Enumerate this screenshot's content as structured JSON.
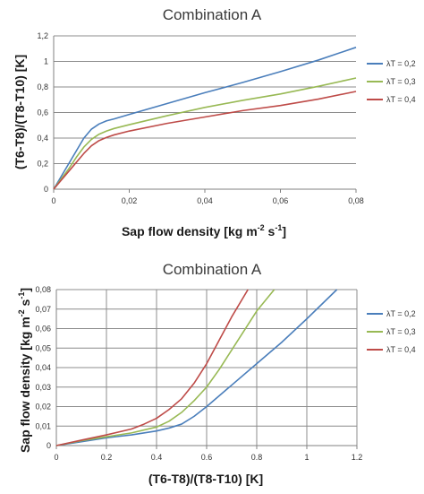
{
  "chart_data": [
    {
      "type": "line",
      "title": "Combination A",
      "xlabel": "Sap flow density [kg m-2 s-1]",
      "ylabel": "(T6-T8)/(T8-T10) [K]",
      "xlim": [
        0,
        0.08
      ],
      "ylim": [
        0,
        1.2
      ],
      "xticks": [
        0,
        0.02,
        0.04,
        0.06,
        0.08
      ],
      "xtick_labels": [
        "0",
        "0,02",
        "0,04",
        "0,06",
        "0,08"
      ],
      "yticks": [
        0,
        0.2,
        0.4,
        0.6,
        0.8,
        1,
        1.2
      ],
      "ytick_labels": [
        "0",
        "0,2",
        "0,4",
        "0,6",
        "0,8",
        "1",
        "1,2"
      ],
      "grid": "horizontal",
      "legend_position": "right",
      "series": [
        {
          "name": "λT = 0,2",
          "color": "#4a7ebb",
          "x": [
            0,
            0.002,
            0.004,
            0.006,
            0.008,
            0.01,
            0.012,
            0.014,
            0.016,
            0.02,
            0.03,
            0.04,
            0.05,
            0.06,
            0.07,
            0.08
          ],
          "y": [
            0,
            0.1,
            0.2,
            0.3,
            0.4,
            0.47,
            0.51,
            0.535,
            0.55,
            0.585,
            0.67,
            0.755,
            0.835,
            0.92,
            1.01,
            1.11
          ]
        },
        {
          "name": "λT = 0,3",
          "color": "#98b954",
          "x": [
            0,
            0.002,
            0.004,
            0.006,
            0.008,
            0.01,
            0.012,
            0.014,
            0.016,
            0.02,
            0.03,
            0.04,
            0.05,
            0.06,
            0.07,
            0.08
          ],
          "y": [
            0,
            0.08,
            0.16,
            0.25,
            0.33,
            0.39,
            0.43,
            0.455,
            0.475,
            0.505,
            0.575,
            0.64,
            0.695,
            0.745,
            0.805,
            0.87
          ]
        },
        {
          "name": "λT = 0,4",
          "color": "#be4b48",
          "x": [
            0,
            0.002,
            0.004,
            0.006,
            0.008,
            0.01,
            0.012,
            0.014,
            0.016,
            0.02,
            0.03,
            0.04,
            0.05,
            0.06,
            0.07,
            0.08
          ],
          "y": [
            0,
            0.07,
            0.14,
            0.21,
            0.28,
            0.34,
            0.38,
            0.405,
            0.425,
            0.455,
            0.515,
            0.565,
            0.615,
            0.655,
            0.705,
            0.765
          ]
        }
      ]
    },
    {
      "type": "line",
      "title": "Combination A",
      "xlabel": "(T6-T8)/(T8-T10) [K]",
      "ylabel": "Sap flow density [kg m-2 s-1]",
      "xlim": [
        0,
        1.2
      ],
      "ylim": [
        0,
        0.08
      ],
      "xticks": [
        0,
        0.2,
        0.4,
        0.6,
        0.8,
        1,
        1.2
      ],
      "xtick_labels": [
        "0",
        "0.2",
        "0.4",
        "0.6",
        "0.8",
        "1",
        "1.2"
      ],
      "yticks": [
        0,
        0.01,
        0.02,
        0.03,
        0.04,
        0.05,
        0.06,
        0.07,
        0.08
      ],
      "ytick_labels": [
        "0",
        "0,01",
        "0,02",
        "0,03",
        "0,04",
        "0,05",
        "0,06",
        "0,07",
        "0,08"
      ],
      "grid": "both",
      "legend_position": "right",
      "series": [
        {
          "name": "λT = 0,2",
          "color": "#4a7ebb",
          "x": [
            0,
            0.1,
            0.2,
            0.3,
            0.4,
            0.45,
            0.5,
            0.55,
            0.6,
            0.7,
            0.8,
            0.9,
            1.0,
            1.12
          ],
          "y": [
            0,
            0.002,
            0.004,
            0.0055,
            0.0075,
            0.009,
            0.011,
            0.015,
            0.02,
            0.031,
            0.042,
            0.053,
            0.065,
            0.08
          ]
        },
        {
          "name": "λT = 0,3",
          "color": "#98b954",
          "x": [
            0,
            0.1,
            0.2,
            0.3,
            0.4,
            0.45,
            0.5,
            0.55,
            0.6,
            0.65,
            0.7,
            0.75,
            0.8,
            0.87
          ],
          "y": [
            0,
            0.0025,
            0.0045,
            0.0065,
            0.0095,
            0.0125,
            0.017,
            0.023,
            0.03,
            0.039,
            0.049,
            0.059,
            0.069,
            0.08
          ]
        },
        {
          "name": "λT = 0,4",
          "color": "#be4b48",
          "x": [
            0,
            0.1,
            0.2,
            0.3,
            0.35,
            0.4,
            0.45,
            0.5,
            0.55,
            0.6,
            0.65,
            0.7,
            0.765
          ],
          "y": [
            0,
            0.0028,
            0.0055,
            0.0085,
            0.011,
            0.014,
            0.0185,
            0.024,
            0.032,
            0.042,
            0.054,
            0.066,
            0.08
          ]
        }
      ]
    }
  ],
  "ylabel_parts_1": {
    "pre": "(T6-T8)/(T8-T10) [K]"
  },
  "xlabel_parts_1": {
    "a": "Sap flow density [kg m",
    "b": "-2",
    "c": " s",
    "d": "-1",
    "e": "]"
  },
  "ylabel_parts_2": {
    "a": "Sap flow density [kg m",
    "b": "-2",
    "c": " s",
    "d": "-1",
    "e": "]"
  },
  "xlabel_parts_2": {
    "pre": "(T6-T8)/(T8-T10) [K]"
  }
}
